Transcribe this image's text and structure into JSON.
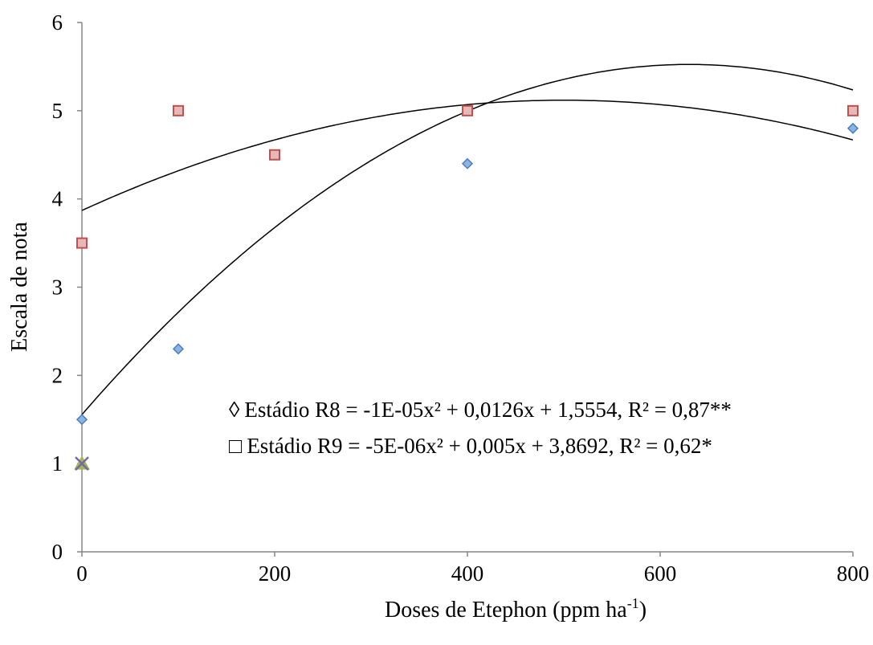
{
  "chart_data": {
    "type": "scatter",
    "xlabel": "Doses de Etephon (ppm ha",
    "xlabel_sup": "-1",
    "xlabel_end": ")",
    "ylabel": "Escala de nota",
    "xlim": [
      0,
      800
    ],
    "ylim": [
      0,
      6
    ],
    "xticks": [
      0,
      200,
      400,
      600,
      800
    ],
    "yticks": [
      0,
      1,
      2,
      3,
      4,
      5,
      6
    ],
    "grid": false,
    "series": [
      {
        "name": "Estádio R8",
        "marker": "diamond",
        "color": "#4a7ebb",
        "fill": "#8db3e2",
        "x": [
          0,
          100,
          200,
          400,
          800
        ],
        "y": [
          1.5,
          2.3,
          4.5,
          4.4,
          4.8
        ],
        "trend": {
          "a": -1e-05,
          "b": 0.0126,
          "c": 1.5554
        }
      },
      {
        "name": "Estádio R9",
        "marker": "square",
        "color": "#c0504d",
        "fill": "#e6b9b8",
        "x": [
          0,
          100,
          200,
          400,
          800
        ],
        "y": [
          3.5,
          5.0,
          4.5,
          5.0,
          5.0
        ],
        "trend": {
          "a": -5e-06,
          "b": 0.005,
          "c": 3.8692
        }
      },
      {
        "marker": "triangle",
        "color": "#9bbb59",
        "fill": "#9bbb59",
        "x": [
          0
        ],
        "y": [
          1
        ]
      },
      {
        "marker": "x",
        "color": "#8064a2",
        "fill": "#8064a2",
        "x": [
          0
        ],
        "y": [
          1
        ]
      }
    ],
    "annotations": [
      {
        "symbol": "◊",
        "text": "Estádio R8  = -1E-05x² + 0,0126x + 1,5554,  R² = 0,87**"
      },
      {
        "symbol": "□",
        "text": "Estádio R9 = -5E-06x² + 0,005x + 3,8692,  R² = 0,62*"
      }
    ]
  }
}
